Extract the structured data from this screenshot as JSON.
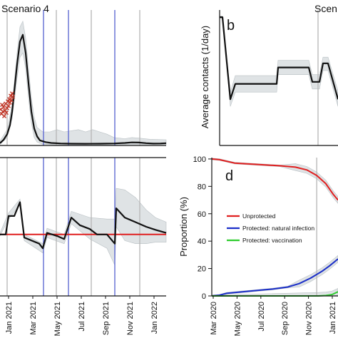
{
  "chart_data": [
    {
      "panel": "top-left",
      "type": "line",
      "title": "Scenario 4",
      "series": [
        {
          "color": "#111111",
          "values": [
            [
              0,
              0.02
            ],
            [
              5,
              0.05
            ],
            [
              10,
              0.1
            ],
            [
              14,
              0.18
            ],
            [
              17,
              0.3
            ],
            [
              20,
              0.48
            ],
            [
              24,
              0.72
            ],
            [
              28,
              0.92
            ],
            [
              32,
              0.98
            ],
            [
              36,
              0.82
            ],
            [
              40,
              0.55
            ],
            [
              44,
              0.3
            ],
            [
              48,
              0.15
            ],
            [
              52,
              0.08
            ],
            [
              56,
              0.045
            ],
            [
              64,
              0.03
            ],
            [
              72,
              0.022
            ],
            [
              85,
              0.018
            ],
            [
              100,
              0.016
            ],
            [
              120,
              0.015
            ],
            [
              140,
              0.016
            ],
            [
              160,
              0.018
            ],
            [
              175,
              0.022
            ],
            [
              185,
              0.027
            ],
            [
              195,
              0.026
            ],
            [
              205,
              0.02
            ],
            [
              215,
              0.017
            ],
            [
              225,
              0.018
            ],
            [
              233,
              0.02
            ]
          ]
        },
        {
          "color": "#c0392b",
          "kind": "points",
          "values": [
            [
              1,
              0.32
            ],
            [
              2,
              0.28
            ],
            [
              3,
              0.36
            ],
            [
              4,
              0.3
            ],
            [
              5,
              0.34
            ],
            [
              6,
              0.26
            ],
            [
              7,
              0.31
            ],
            [
              8,
              0.37
            ],
            [
              9,
              0.29
            ],
            [
              10,
              0.33
            ],
            [
              11,
              0.39
            ],
            [
              12,
              0.35
            ],
            [
              13,
              0.41
            ],
            [
              14,
              0.38
            ],
            [
              15,
              0.44
            ],
            [
              16,
              0.4
            ],
            [
              17,
              0.46
            ],
            [
              18,
              0.43
            ]
          ]
        }
      ],
      "band": {
        "upper": [
          [
            0,
            0.04
          ],
          [
            10,
            0.14
          ],
          [
            17,
            0.36
          ],
          [
            24,
            0.82
          ],
          [
            28,
            1.05
          ],
          [
            32,
            1.1
          ],
          [
            36,
            0.95
          ],
          [
            40,
            0.68
          ],
          [
            44,
            0.42
          ],
          [
            48,
            0.25
          ],
          [
            52,
            0.16
          ],
          [
            60,
            0.12
          ],
          [
            70,
            0.12
          ],
          [
            80,
            0.14
          ],
          [
            90,
            0.12
          ],
          [
            100,
            0.13
          ],
          [
            110,
            0.14
          ],
          [
            120,
            0.12
          ],
          [
            130,
            0.14
          ],
          [
            140,
            0.12
          ],
          [
            150,
            0.1
          ],
          [
            160,
            0.07
          ],
          [
            175,
            0.06
          ],
          [
            185,
            0.07
          ],
          [
            195,
            0.065
          ],
          [
            210,
            0.055
          ],
          [
            233,
            0.05
          ]
        ],
        "lower": [
          [
            0,
            0.01
          ],
          [
            10,
            0.07
          ],
          [
            17,
            0.24
          ],
          [
            24,
            0.6
          ],
          [
            28,
            0.78
          ],
          [
            32,
            0.82
          ],
          [
            36,
            0.68
          ],
          [
            40,
            0.42
          ],
          [
            44,
            0.2
          ],
          [
            48,
            0.07
          ],
          [
            52,
            0.03
          ],
          [
            60,
            0.01
          ],
          [
            80,
            0.005
          ],
          [
            120,
            0.005
          ],
          [
            160,
            0.006
          ],
          [
            185,
            0.01
          ],
          [
            210,
            0.008
          ],
          [
            233,
            0.008
          ]
        ]
      },
      "vlines_gray": [
        10,
        79,
        128,
        196
      ],
      "vlines_blue": [
        61,
        96,
        161
      ]
    },
    {
      "panel": "bottom-left",
      "type": "line",
      "xlabel": "",
      "xticks": [
        "Jan 2021",
        "Mar 2021",
        "May 2021",
        "Jul 2021",
        "Sep 2021",
        "Nov 2021",
        "Jan 2022"
      ],
      "reference_line": {
        "color": "#e02020",
        "value": 1.0
      },
      "series": [
        {
          "color": "#111111",
          "values": [
            [
              0,
              1.0
            ],
            [
              8,
              1.0
            ],
            [
              12,
              1.24
            ],
            [
              20,
              1.24
            ],
            [
              28,
              1.42
            ],
            [
              34,
              0.96
            ],
            [
              55,
              0.88
            ],
            [
              60,
              0.82
            ],
            [
              66,
              1.02
            ],
            [
              80,
              0.98
            ],
            [
              90,
              0.94
            ],
            [
              100,
              1.22
            ],
            [
              112,
              1.12
            ],
            [
              126,
              1.07
            ],
            [
              136,
              1.0
            ],
            [
              150,
              1.0
            ],
            [
              161,
              0.88
            ],
            [
              163,
              1.34
            ],
            [
              175,
              1.22
            ],
            [
              190,
              1.16
            ],
            [
              205,
              1.1
            ],
            [
              218,
              1.06
            ],
            [
              233,
              1.02
            ]
          ]
        }
      ],
      "band": {
        "upper": [
          [
            0,
            1.02
          ],
          [
            12,
            1.28
          ],
          [
            28,
            1.46
          ],
          [
            34,
            1.0
          ],
          [
            60,
            0.88
          ],
          [
            66,
            1.08
          ],
          [
            90,
            1.0
          ],
          [
            100,
            1.3
          ],
          [
            126,
            1.22
          ],
          [
            150,
            1.2
          ],
          [
            161,
            1.2
          ],
          [
            163,
            1.6
          ],
          [
            175,
            1.58
          ],
          [
            190,
            1.48
          ],
          [
            205,
            1.32
          ],
          [
            218,
            1.22
          ],
          [
            233,
            1.16
          ]
        ],
        "lower": [
          [
            0,
            0.98
          ],
          [
            12,
            1.2
          ],
          [
            28,
            1.38
          ],
          [
            34,
            0.92
          ],
          [
            60,
            0.76
          ],
          [
            66,
            0.96
          ],
          [
            90,
            0.88
          ],
          [
            100,
            1.14
          ],
          [
            126,
            0.94
          ],
          [
            150,
            0.82
          ],
          [
            161,
            0.6
          ],
          [
            163,
            1.1
          ],
          [
            175,
            0.92
          ],
          [
            190,
            0.88
          ],
          [
            205,
            0.88
          ],
          [
            218,
            0.9
          ],
          [
            233,
            0.9
          ]
        ]
      },
      "vlines_gray": [
        10,
        79,
        128,
        196
      ],
      "vlines_blue": [
        61,
        96,
        161
      ]
    },
    {
      "panel": "top-right",
      "type": "line",
      "label": "b",
      "title": "Scen",
      "ylabel": "Average contacts (1/day)",
      "series": [
        {
          "color": "#111111",
          "values": [
            [
              0,
              12.5
            ],
            [
              4,
              12.5
            ],
            [
              15,
              4.5
            ],
            [
              22,
              6
            ],
            [
              45,
              6
            ],
            [
              60,
              6
            ],
            [
              80,
              6
            ],
            [
              82,
              7.6
            ],
            [
              105,
              7.6
            ],
            [
              125,
              7.6
            ],
            [
              130,
              6.2
            ],
            [
              140,
              6.2
            ],
            [
              145,
              8
            ],
            [
              152,
              8
            ],
            [
              162,
              5.5
            ],
            [
              166,
              4.5
            ]
          ]
        }
      ],
      "band": {
        "upper": [
          [
            0,
            12.6
          ],
          [
            4,
            12.6
          ],
          [
            15,
            5.2
          ],
          [
            22,
            6.8
          ],
          [
            80,
            6.8
          ],
          [
            82,
            8.3
          ],
          [
            125,
            8.3
          ],
          [
            130,
            6.9
          ],
          [
            140,
            6.9
          ],
          [
            145,
            8.6
          ],
          [
            152,
            8.6
          ],
          [
            166,
            5.3
          ]
        ],
        "lower": [
          [
            0,
            12.4
          ],
          [
            4,
            12.4
          ],
          [
            15,
            3.8
          ],
          [
            22,
            5.2
          ],
          [
            80,
            5.2
          ],
          [
            82,
            6.9
          ],
          [
            125,
            6.9
          ],
          [
            130,
            5.5
          ],
          [
            140,
            5.5
          ],
          [
            145,
            7.3
          ],
          [
            152,
            7.3
          ],
          [
            166,
            3.8
          ]
        ]
      },
      "vlines_gray": [
        138
      ]
    },
    {
      "panel": "bottom-right",
      "type": "line",
      "label": "d",
      "ylabel": "Proportion (%)",
      "ylim": [
        0,
        100
      ],
      "yticks": [
        "0",
        "20",
        "40",
        "60",
        "80",
        "100"
      ],
      "xticks": [
        "Mar 2020",
        "May 2020",
        "Jul 2020",
        "Sep 2020",
        "Nov 2020",
        "Jan 2021"
      ],
      "legend_position": "center",
      "series": [
        {
          "name": "Unprotected",
          "color": "#e02020",
          "values": [
            [
              0,
              100
            ],
            [
              10,
              99.5
            ],
            [
              30,
              97
            ],
            [
              60,
              96
            ],
            [
              90,
              95
            ],
            [
              110,
              94
            ],
            [
              125,
              92
            ],
            [
              138,
              88
            ],
            [
              150,
              82
            ],
            [
              160,
              74
            ],
            [
              166,
              70
            ]
          ]
        },
        {
          "name": "Protected: natural infection",
          "color": "#1a2ec8",
          "values": [
            [
              0,
              0
            ],
            [
              10,
              0.5
            ],
            [
              20,
              2
            ],
            [
              40,
              3
            ],
            [
              60,
              4
            ],
            [
              80,
              5
            ],
            [
              100,
              6.5
            ],
            [
              115,
              9
            ],
            [
              130,
              13
            ],
            [
              145,
              18
            ],
            [
              155,
              22
            ],
            [
              166,
              27
            ]
          ]
        },
        {
          "name": "Protected: vaccination",
          "color": "#2ecc2e",
          "values": [
            [
              0,
              0
            ],
            [
              140,
              0
            ],
            [
              150,
              0.3
            ],
            [
              158,
              1
            ],
            [
              166,
              3
            ]
          ]
        }
      ],
      "vlines_gray": [
        138
      ]
    }
  ]
}
